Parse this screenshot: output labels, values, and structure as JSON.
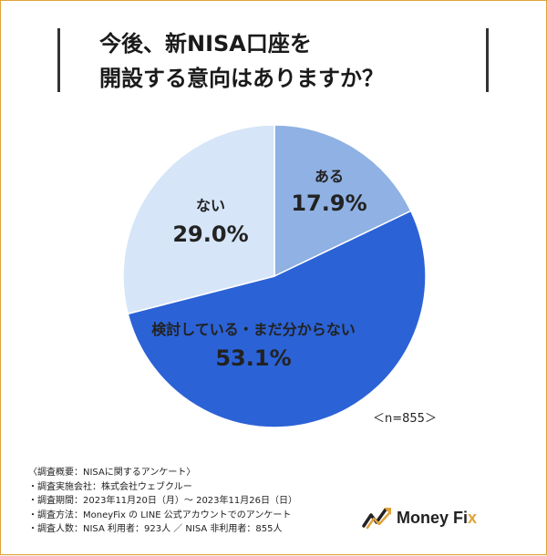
{
  "title": {
    "line1": "今後、新NISA口座を",
    "line2": "開設する意向はありますか？"
  },
  "sample_note": "＜n=855＞",
  "notes": [
    "〈調査概要：NISAに関するアンケート〉",
    "・調査実施会社：株式会社ウェブクルー",
    "・調査期間：2023年11月20日（月）〜 2023年11月26日（日）",
    "・調査方法：MoneyFix の LINE 公式アカウントでのアンケート",
    "・調査人数：NISA 利用者：923人 ／ NISA 非利用者：855人"
  ],
  "logo": {
    "text_main": "Money Fi",
    "text_accent": "x",
    "mark_icon": "trend-arrow-icon"
  },
  "colors": {
    "aru": "#8fb1e3",
    "kento": "#2b62d6",
    "nai": "#d6e5f8",
    "accent": "#e0a23a"
  },
  "chart_data": {
    "type": "pie",
    "title": "今後、新NISA口座を開設する意向はありますか？",
    "n": 855,
    "slices": [
      {
        "label": "ある",
        "value": 17.9,
        "display": "17.9%"
      },
      {
        "label": "検討している・まだ分からない",
        "value": 53.1,
        "display": "53.1%"
      },
      {
        "label": "ない",
        "value": 29.0,
        "display": "29.0%"
      }
    ]
  }
}
